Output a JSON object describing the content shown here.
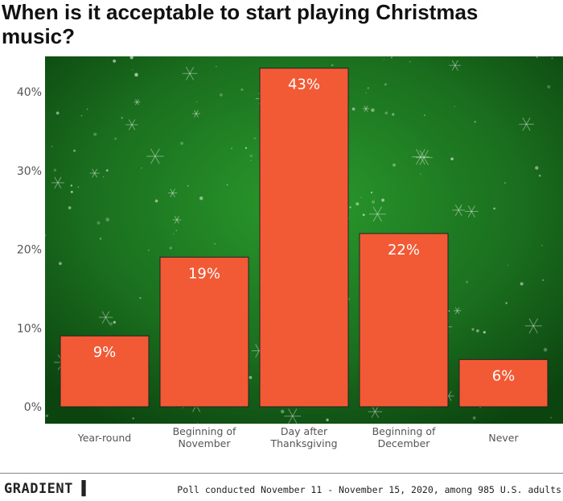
{
  "chart_data": {
    "type": "bar",
    "title": "When is it acceptable to start playing Christmas music?",
    "categories": [
      "Year-round",
      "Beginning of November",
      "Day after Thanksgiving",
      "Beginning of December",
      "Never"
    ],
    "category_lines": [
      [
        "Year-round"
      ],
      [
        "Beginning of",
        "November"
      ],
      [
        "Day after",
        "Thanksgiving"
      ],
      [
        "Beginning of",
        "December"
      ],
      [
        "Never"
      ]
    ],
    "values": [
      9,
      19,
      43,
      22,
      6
    ],
    "data_labels": [
      "9%",
      "19%",
      "43%",
      "22%",
      "6%"
    ],
    "ylim": [
      0,
      45
    ],
    "yticks": [
      0,
      10,
      20,
      30,
      40
    ],
    "ytick_labels": [
      "0%",
      "10%",
      "20%",
      "30%",
      "40%"
    ],
    "grid": false,
    "colors": {
      "bar": "#f15a35",
      "background": "#1e7a22",
      "label": "#ffffff"
    }
  },
  "footer": {
    "brand": "GRADIENT ▌",
    "note": "Poll conducted November 11 - November 15, 2020, among 985 U.S. adults"
  }
}
